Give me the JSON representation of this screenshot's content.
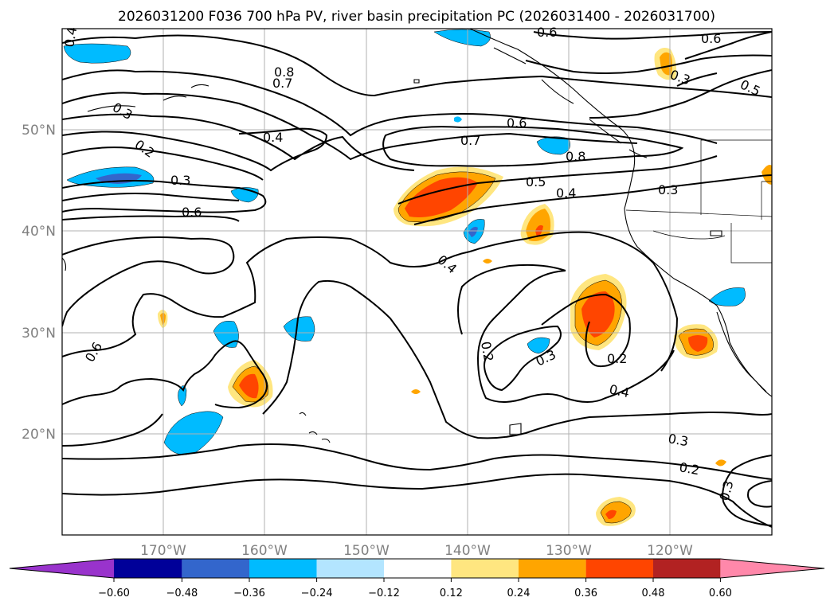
{
  "title": "2026031200 F036 700 hPa PV, river basin precipitation PC (2026031400 - 2026031700)",
  "axes": {
    "lat_labels": [
      "50°N",
      "40°N",
      "30°N",
      "20°N"
    ],
    "lon_labels": [
      "170°W",
      "160°W",
      "150°W",
      "140°W",
      "130°W",
      "120°W"
    ]
  },
  "colorbar": {
    "colors": [
      "#9933cc",
      "#000099",
      "#3366cc",
      "#00bbff",
      "#b3e5ff",
      "#ffffff",
      "#ffe680",
      "#ffa500",
      "#ff4500",
      "#b22222",
      "#ff88aa"
    ],
    "tick_labels": [
      "−0.60",
      "−0.48",
      "−0.36",
      "−0.24",
      "−0.12",
      "0.12",
      "0.24",
      "0.36",
      "0.48",
      "0.60"
    ]
  },
  "contour_labels": [
    "0.4",
    "0.8",
    "0.7",
    "0.3",
    "0.2",
    "0.4",
    "0.3",
    "0.6",
    "0.6",
    "0.6",
    "0.7",
    "0.8",
    "0.5",
    "0.4",
    "0.6",
    "0.3",
    "0.3",
    "0.5",
    "0.6",
    "0.4",
    "0.2",
    "0.3",
    "0.2",
    "0.4",
    "0.3",
    "0.2",
    "0.3"
  ]
}
